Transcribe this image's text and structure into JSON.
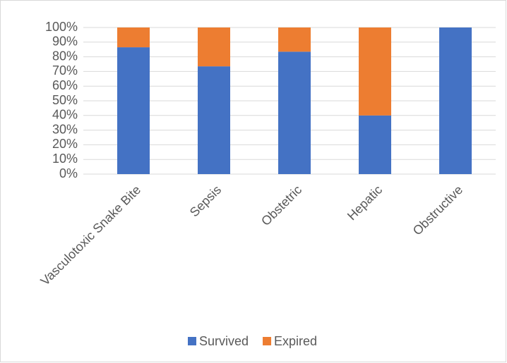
{
  "chart_data": {
    "type": "stacked_bar",
    "categories": [
      "Vasculotoxic Snake Bite",
      "Sepsis",
      "Obstetric",
      "Hepatic",
      "Obstructive"
    ],
    "series": [
      {
        "name": "Survived",
        "color": "#4472c4",
        "values": [
          86.5,
          73.5,
          83.5,
          40,
          100
        ]
      },
      {
        "name": "Expired",
        "color": "#ed7d31",
        "values": [
          13.5,
          26.5,
          16.5,
          60,
          0
        ]
      }
    ],
    "ylim": [
      0,
      100
    ],
    "yticks": [
      {
        "value": 0,
        "label": "0%"
      },
      {
        "value": 10,
        "label": "10%"
      },
      {
        "value": 20,
        "label": "20%"
      },
      {
        "value": 30,
        "label": "30%"
      },
      {
        "value": 40,
        "label": "40%"
      },
      {
        "value": 50,
        "label": "50%"
      },
      {
        "value": 60,
        "label": "60%"
      },
      {
        "value": 70,
        "label": "70%"
      },
      {
        "value": 80,
        "label": "80%"
      },
      {
        "value": 90,
        "label": "90%"
      },
      {
        "value": 100,
        "label": "100%"
      }
    ],
    "grid": true,
    "legend": "bottom"
  }
}
